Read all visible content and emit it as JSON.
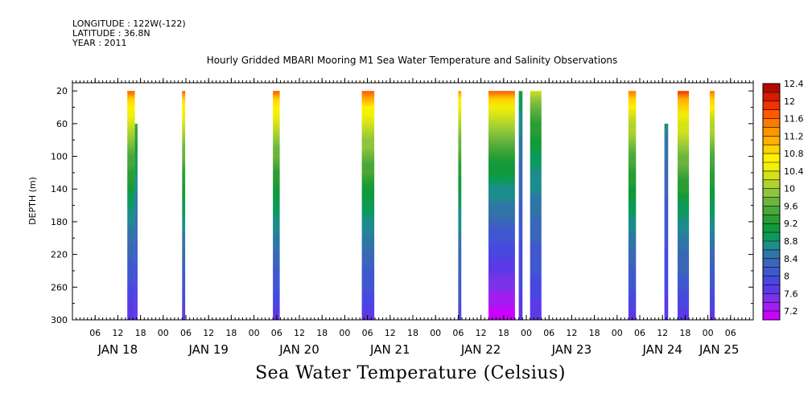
{
  "header": {
    "longitude": "LONGITUDE : 122W(-122)",
    "latitude": "LATITUDE : 36.8N",
    "year": "YEAR : 2011"
  },
  "chart_data": {
    "type": "heatmap",
    "title": "Hourly Gridded MBARI Mooring M1 Sea Water Temperature and Salinity Observations",
    "ylabel": "DEPTH (m)",
    "xlabel": "",
    "colorbar_label": "Sea Water Temperature (Celsius)",
    "y_ticks": [
      20,
      60,
      100,
      140,
      180,
      220,
      260,
      300
    ],
    "ylim": [
      300,
      10
    ],
    "x_hour_ticks": [
      {
        "label": "06",
        "h": 6
      },
      {
        "label": "12",
        "h": 12
      },
      {
        "label": "18",
        "h": 18
      },
      {
        "label": "00",
        "h": 24
      },
      {
        "label": "06",
        "h": 30
      },
      {
        "label": "12",
        "h": 36
      },
      {
        "label": "18",
        "h": 42
      },
      {
        "label": "00",
        "h": 48
      },
      {
        "label": "06",
        "h": 54
      },
      {
        "label": "12",
        "h": 60
      },
      {
        "label": "18",
        "h": 66
      },
      {
        "label": "00",
        "h": 72
      },
      {
        "label": "06",
        "h": 78
      },
      {
        "label": "12",
        "h": 84
      },
      {
        "label": "18",
        "h": 90
      },
      {
        "label": "00",
        "h": 96
      },
      {
        "label": "06",
        "h": 102
      },
      {
        "label": "12",
        "h": 108
      },
      {
        "label": "18",
        "h": 114
      },
      {
        "label": "00",
        "h": 120
      },
      {
        "label": "06",
        "h": 126
      },
      {
        "label": "12",
        "h": 132
      },
      {
        "label": "18",
        "h": 138
      },
      {
        "label": "00",
        "h": 144
      },
      {
        "label": "06",
        "h": 150
      },
      {
        "label": "12",
        "h": 156
      },
      {
        "label": "18",
        "h": 162
      },
      {
        "label": "00",
        "h": 168
      },
      {
        "label": "06",
        "h": 174
      }
    ],
    "x_day_labels": [
      {
        "label": "JAN 18",
        "h": 12
      },
      {
        "label": "JAN 19",
        "h": 36
      },
      {
        "label": "JAN 20",
        "h": 60
      },
      {
        "label": "JAN 21",
        "h": 84
      },
      {
        "label": "JAN 22",
        "h": 108
      },
      {
        "label": "JAN 23",
        "h": 132
      },
      {
        "label": "JAN 24",
        "h": 156
      },
      {
        "label": "JAN 25",
        "h": 171
      }
    ],
    "xlim": [
      0,
      180
    ],
    "colorbar": {
      "levels": [
        7.2,
        7.4,
        7.6,
        7.8,
        8.0,
        8.2,
        8.4,
        8.6,
        8.8,
        9.0,
        9.2,
        9.4,
        9.6,
        9.8,
        10.0,
        10.2,
        10.4,
        10.6,
        10.8,
        11.0,
        11.2,
        11.4,
        11.6,
        11.8,
        12.0,
        12.2,
        12.4,
        12.6
      ],
      "labels": [
        "7.2",
        "7.6",
        "8",
        "8.4",
        "8.8",
        "9.2",
        "9.6",
        "10",
        "10.4",
        "10.8",
        "11.2",
        "11.6",
        "12",
        "12.4"
      ],
      "colors": [
        "#cc00ff",
        "#a31cf0",
        "#7a33e8",
        "#5a3ae6",
        "#4848e0",
        "#3f58cf",
        "#3a67b8",
        "#2f75a8",
        "#1d8c8c",
        "#0c9a5c",
        "#119a3c",
        "#2a9e34",
        "#4aa83a",
        "#6bb53c",
        "#8dc63c",
        "#b0d42c",
        "#d4e21a",
        "#f2ef08",
        "#fff000",
        "#ffd200",
        "#ffb000",
        "#ff9600",
        "#ff7a00",
        "#ff5a00",
        "#f03200",
        "#d81a00",
        "#b40a00"
      ]
    },
    "columns": [
      {
        "h0": 14.5,
        "h1": 16.5,
        "top": 20,
        "bottom": 300,
        "surface": 11.8,
        "bottom_temp": 7.8
      },
      {
        "h0": 16.5,
        "h1": 17.2,
        "top": 60,
        "bottom": 300,
        "surface": 10.6,
        "bottom_temp": 7.8
      },
      {
        "h0": 29.0,
        "h1": 29.8,
        "top": 20,
        "bottom": 300,
        "surface": 11.8,
        "bottom_temp": 7.9
      },
      {
        "h0": 53.0,
        "h1": 54.8,
        "top": 20,
        "bottom": 300,
        "surface": 11.8,
        "bottom_temp": 7.9
      },
      {
        "h0": 76.5,
        "h1": 79.8,
        "top": 20,
        "bottom": 300,
        "surface": 11.9,
        "bottom_temp": 7.9
      },
      {
        "h0": 102.0,
        "h1": 102.8,
        "top": 20,
        "bottom": 300,
        "surface": 11.4,
        "bottom_temp": 8.0
      },
      {
        "h0": 110.0,
        "h1": 117.0,
        "top": 20,
        "bottom": 300,
        "surface": 11.8,
        "bottom_temp": 7.3
      },
      {
        "h0": 118.0,
        "h1": 119.0,
        "top": 20,
        "bottom": 300,
        "surface": 9.4,
        "bottom_temp": 7.9
      },
      {
        "h0": 121.0,
        "h1": 124.0,
        "top": 20,
        "bottom": 300,
        "surface": 10.4,
        "bottom_temp": 7.9
      },
      {
        "h0": 147.0,
        "h1": 149.0,
        "top": 20,
        "bottom": 300,
        "surface": 11.7,
        "bottom_temp": 7.9
      },
      {
        "h0": 156.5,
        "h1": 157.5,
        "top": 60,
        "bottom": 300,
        "surface": 9.4,
        "bottom_temp": 7.9
      },
      {
        "h0": 160.0,
        "h1": 163.0,
        "top": 20,
        "bottom": 300,
        "surface": 12.0,
        "bottom_temp": 7.9
      },
      {
        "h0": 168.5,
        "h1": 169.8,
        "top": 20,
        "bottom": 300,
        "surface": 11.7,
        "bottom_temp": 7.9
      }
    ]
  }
}
